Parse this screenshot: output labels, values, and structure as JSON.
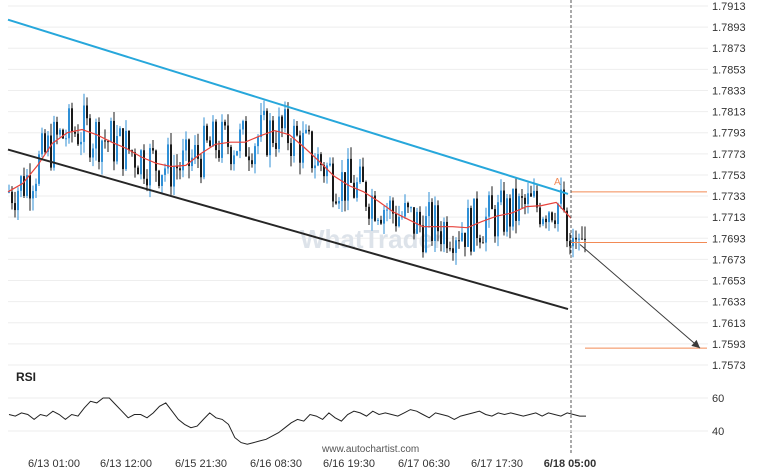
{
  "watermark_text": "WhatTrader",
  "credit": "www.autochartist.com",
  "colors": {
    "up": "#2f8fd6",
    "down": "#1a1a1a",
    "ma": "#e8413a",
    "resistance": "#27a7db",
    "support": "#262626",
    "level": "#f28a55",
    "marker": "#f28a55",
    "projection": "#3a3a3a",
    "rsi": "#222222"
  },
  "chart_data": {
    "type": "candlestick",
    "price_axis": {
      "ticks": [
        "1.7913",
        "1.7893",
        "1.7873",
        "1.7853",
        "1.7833",
        "1.7813",
        "1.7793",
        "1.7773",
        "1.7753",
        "1.7733",
        "1.7713",
        "1.7693",
        "1.7673",
        "1.7653",
        "1.7633",
        "1.7613",
        "1.7593",
        "1.7573"
      ],
      "range": [
        1.7573,
        1.7913
      ]
    },
    "time_axis": {
      "ticks": [
        "6/13 01:00",
        "6/13 12:00",
        "6/15 21:30",
        "6/16 08:30",
        "6/16 19:30",
        "6/17 06:30",
        "6/17 17:30",
        "6/18 05:00"
      ],
      "current": "6/18 05:00"
    },
    "moving_average": [
      1.7737,
      1.7745,
      1.7762,
      1.7783,
      1.7793,
      1.7796,
      1.7791,
      1.7784,
      1.7778,
      1.777,
      1.7764,
      1.7761,
      1.7762,
      1.7773,
      1.7782,
      1.7784,
      1.7784,
      1.779,
      1.7795,
      1.7791,
      1.7779,
      1.7766,
      1.7752,
      1.7743,
      1.7737,
      1.7728,
      1.7718,
      1.7711,
      1.7704,
      1.7704,
      1.7704,
      1.7703,
      1.7709,
      1.7714,
      1.7717,
      1.7723,
      1.7724,
      1.7727,
      1.7712
    ],
    "resistance_line": {
      "start": [
        0,
        1.79
      ],
      "end": [
        560,
        1.7735
      ]
    },
    "support_line": {
      "start": [
        0,
        1.7777
      ],
      "end": [
        560,
        1.7626
      ]
    },
    "target_level": 1.7589,
    "current_level": 1.7689,
    "resistance_level": 1.7737,
    "marker_label": "A",
    "rsi": {
      "label": "RSI",
      "ticks": [
        "60",
        "40"
      ],
      "range": [
        30,
        65
      ],
      "values": [
        50,
        49,
        51,
        50,
        47,
        50,
        49,
        52,
        50,
        47,
        50,
        49,
        54,
        58,
        57,
        60,
        60,
        56,
        52,
        48,
        50,
        50,
        48,
        51,
        55,
        57,
        52,
        47,
        44,
        42,
        43,
        47,
        51,
        48,
        47,
        44,
        36,
        33,
        32,
        33,
        34,
        35,
        37,
        39,
        42,
        45,
        47,
        46,
        50,
        49,
        47,
        51,
        48,
        46,
        50,
        52,
        51,
        49,
        52,
        50,
        51,
        50,
        49,
        51,
        53,
        52,
        50,
        48,
        51,
        50,
        49,
        47,
        49,
        50,
        51,
        52,
        50,
        49,
        51,
        50,
        51,
        50,
        49,
        50,
        51,
        49,
        51,
        50,
        49,
        51,
        50,
        49,
        49
      ]
    }
  }
}
